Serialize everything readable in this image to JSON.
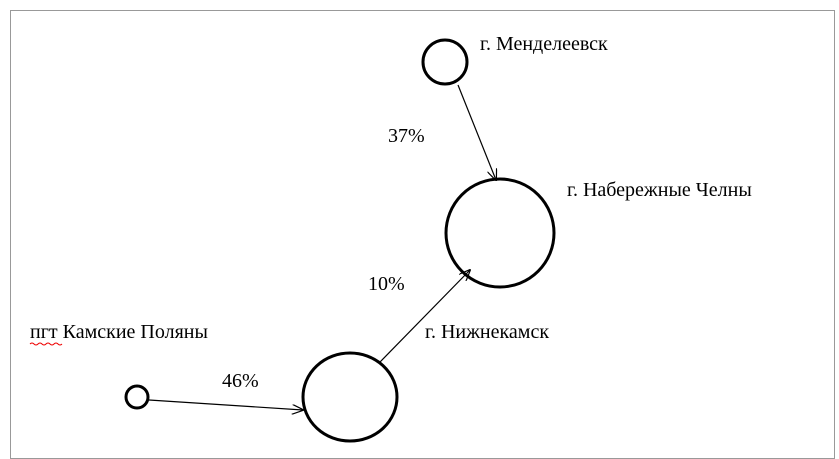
{
  "nodes": [
    {
      "label": "г. Менделеевск"
    },
    {
      "label": "г. Набережные Челны"
    },
    {
      "label": "г. Нижнекамск"
    },
    {
      "label": "пгт Камские Поляны"
    }
  ],
  "edges": [
    {
      "label": "37%"
    },
    {
      "label": "10%"
    },
    {
      "label": "46%"
    }
  ]
}
